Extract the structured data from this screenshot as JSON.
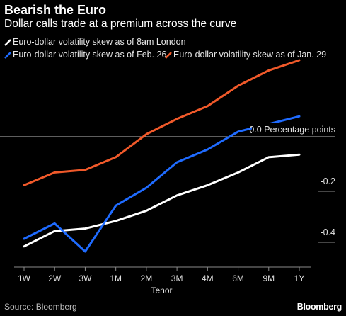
{
  "colors": {
    "background": "#000000",
    "white_series": "#ffffff",
    "blue_series": "#1f6bff",
    "orange_series": "#f0592a",
    "zero_line": "#bdbdbd"
  },
  "title": "Bearish the Euro",
  "subtitle": "Dollar calls trade at a premium across the curve",
  "source": "Source: Bloomberg",
  "brand": "Bloomberg",
  "chart_data": {
    "type": "line",
    "x": [
      "1W",
      "2W",
      "3W",
      "1M",
      "2M",
      "3M",
      "4M",
      "6M",
      "9M",
      "1Y"
    ],
    "xlabel": "Tenor",
    "ylabel": "",
    "ylim": [
      -0.48,
      0.31
    ],
    "ytick_labels": [
      {
        "value": 0.0,
        "label": "0.0 Percentage points"
      },
      {
        "value": -0.2,
        "label": "-0.2"
      },
      {
        "value": -0.4,
        "label": "-0.4"
      }
    ],
    "zero_line": true,
    "grid": false,
    "legend_position": "top-left",
    "series": [
      {
        "name": "Euro-dollar volatility skew as of 8am London",
        "color": "#ffffff",
        "values": [
          -0.43,
          -0.37,
          -0.36,
          -0.33,
          -0.29,
          -0.23,
          -0.19,
          -0.14,
          -0.08,
          -0.07
        ]
      },
      {
        "name": "Euro-dollar volatility skew as of Feb. 26",
        "color": "#1f6bff",
        "values": [
          -0.4,
          -0.34,
          -0.45,
          -0.27,
          -0.2,
          -0.1,
          -0.05,
          0.02,
          0.05,
          0.08
        ]
      },
      {
        "name": "Euro-dollar volatility skew as of Jan. 29",
        "color": "#f0592a",
        "values": [
          -0.19,
          -0.14,
          -0.13,
          -0.08,
          0.01,
          0.07,
          0.12,
          0.2,
          0.26,
          0.3
        ]
      }
    ]
  }
}
